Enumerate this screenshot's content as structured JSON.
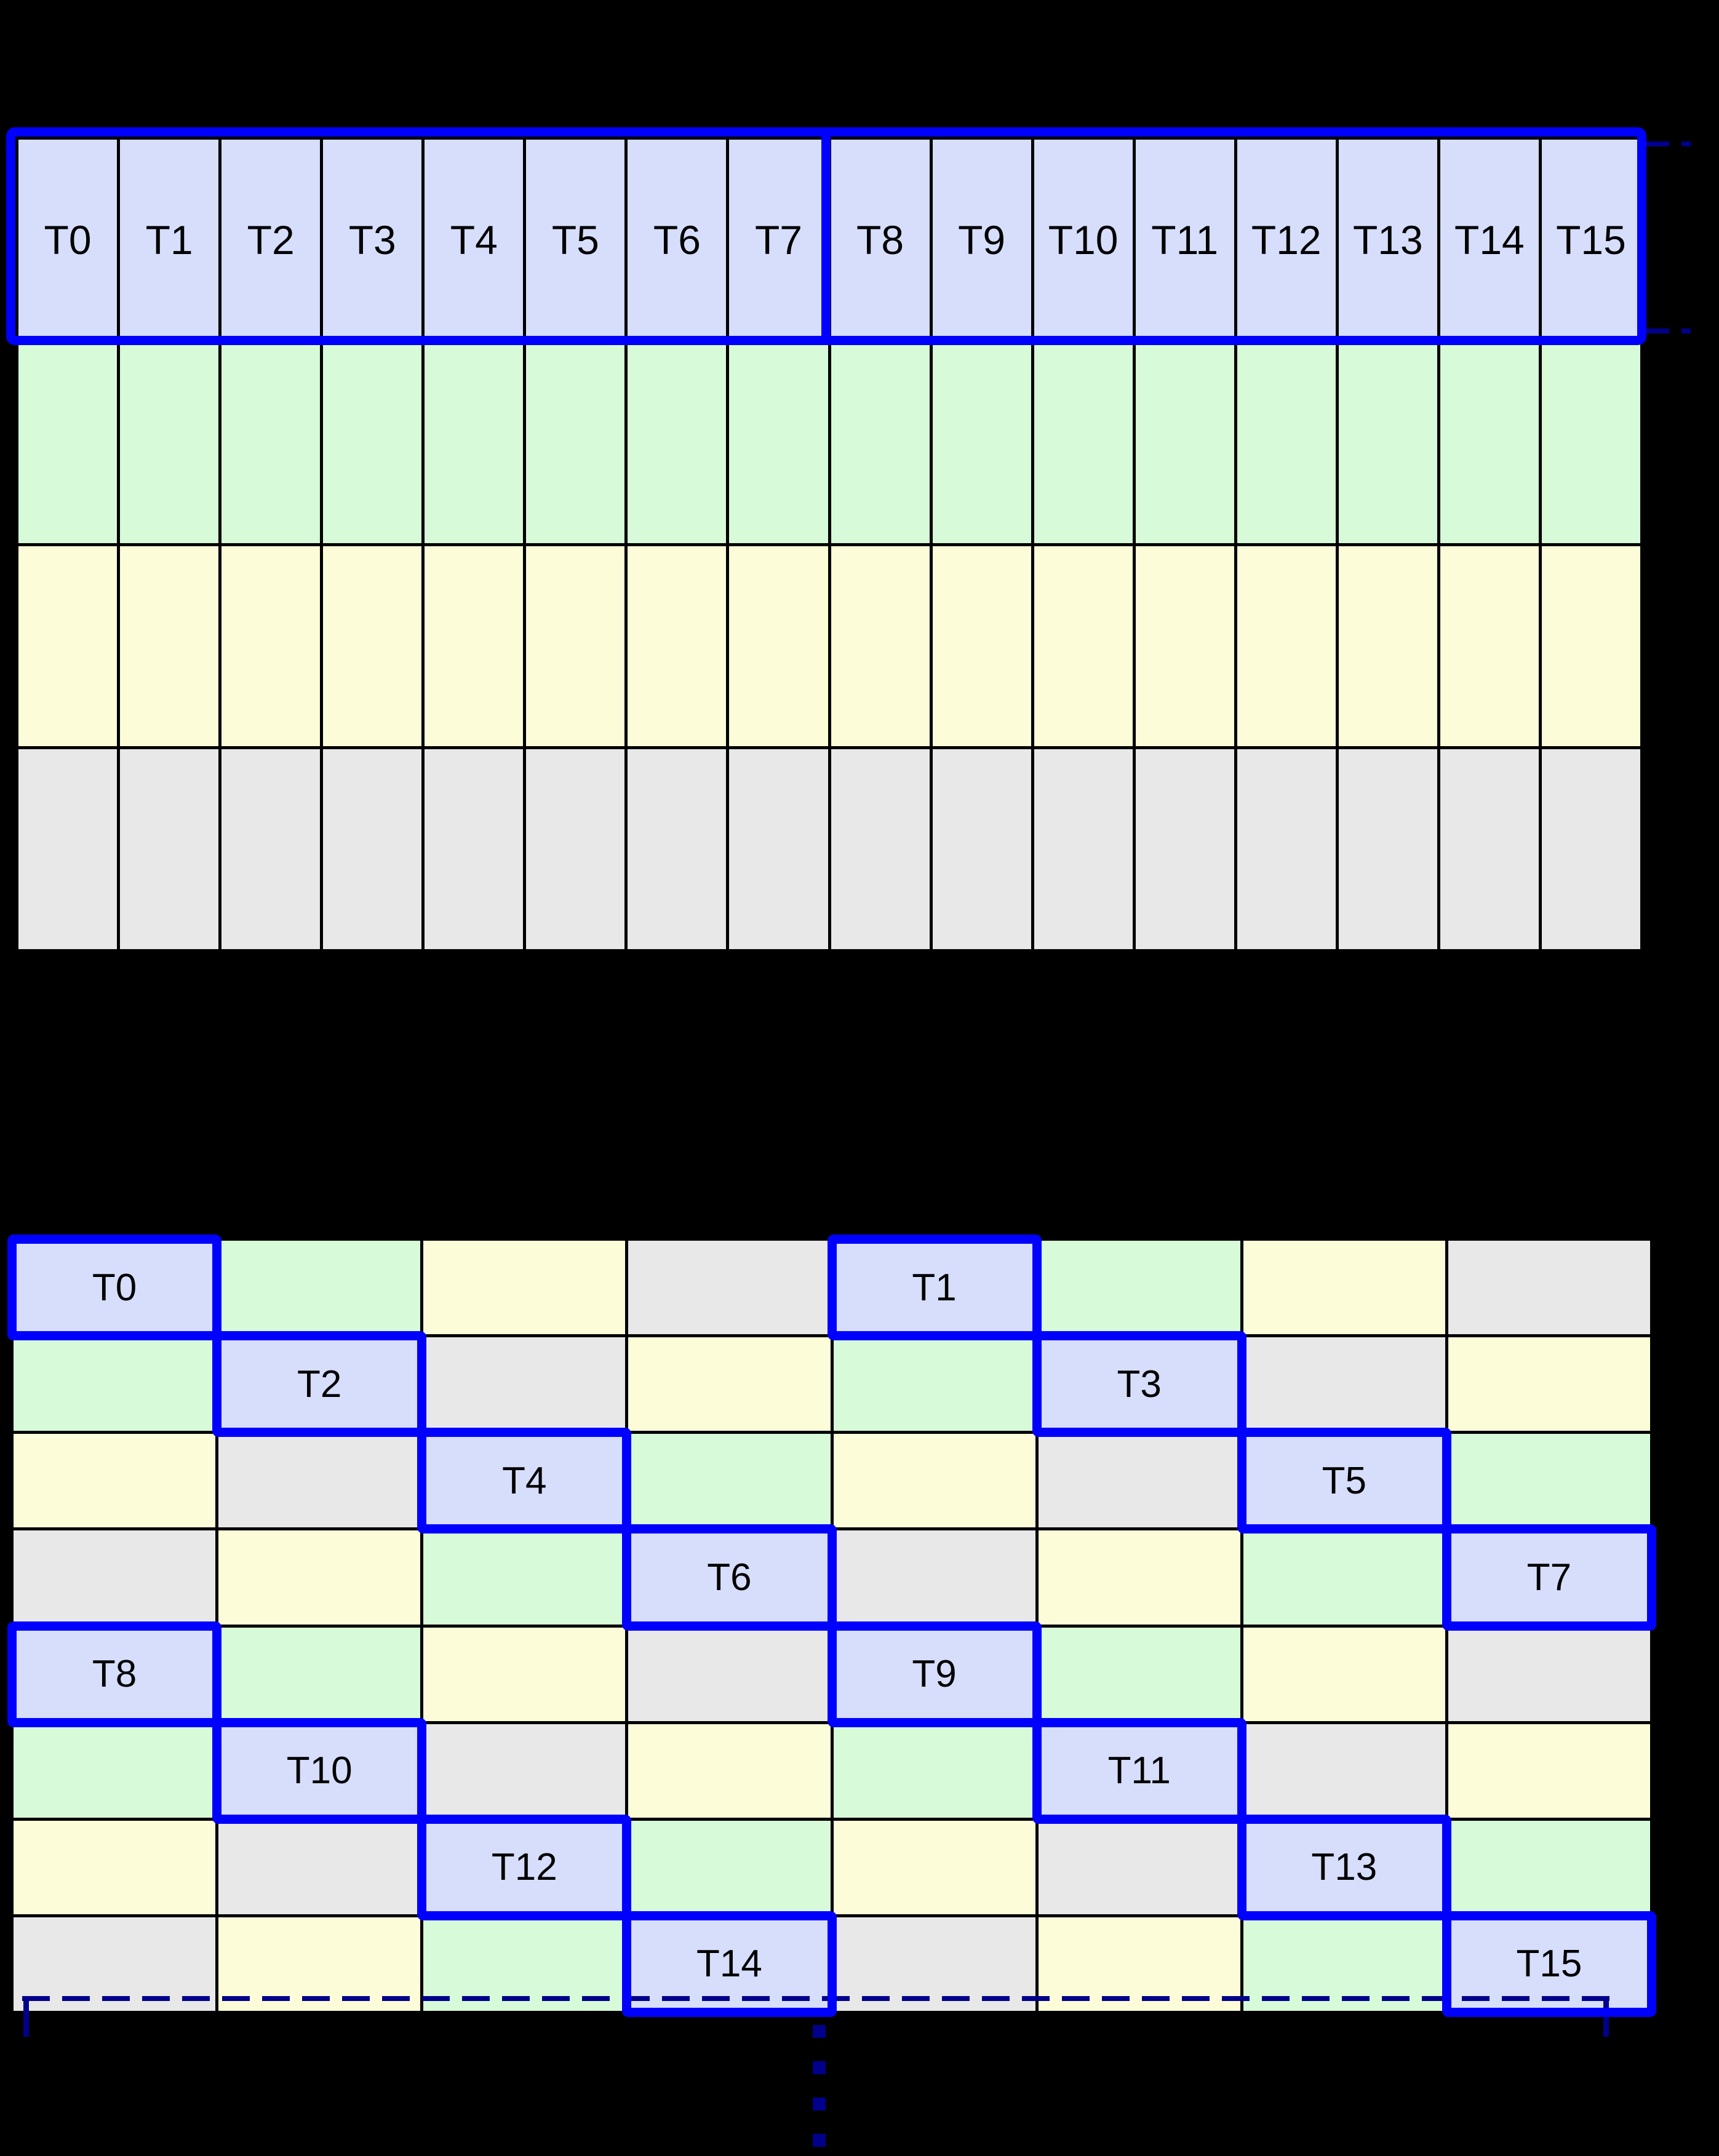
{
  "diagram": "thread-tile-swizzle",
  "palette": {
    "background": "#000000",
    "grid_line": "#000000",
    "thread_blue": "#d6defb",
    "green": "#d7fad8",
    "yellow": "#fdfcd8",
    "gray": "#e8e8e8",
    "highlight_blue": "#0000ff",
    "bracket_navy": "#00008b",
    "label_color": "#000000"
  },
  "top_grid": {
    "columns": 16,
    "rows": 4,
    "thread_labels": [
      "T0",
      "T1",
      "T2",
      "T3",
      "T4",
      "T5",
      "T6",
      "T7",
      "T8",
      "T9",
      "T10",
      "T11",
      "T12",
      "T13",
      "T14",
      "T15"
    ],
    "row_colors": [
      "thread_blue",
      "green",
      "yellow",
      "gray"
    ],
    "warp_groups": [
      {
        "threads": [
          "T0",
          "T1",
          "T2",
          "T3",
          "T4",
          "T5",
          "T6",
          "T7"
        ]
      },
      {
        "threads": [
          "T8",
          "T9",
          "T10",
          "T11",
          "T12",
          "T13",
          "T14",
          "T15"
        ]
      }
    ]
  },
  "bottom_grid": {
    "columns": 8,
    "rows": 8,
    "legend": {
      "B": "thread_blue",
      "G": "green",
      "Y": "yellow",
      "X": "gray"
    },
    "cells": [
      [
        "B:T0",
        "G",
        "Y",
        "X",
        "B:T1",
        "G",
        "Y",
        "X"
      ],
      [
        "G",
        "B:T2",
        "X",
        "Y",
        "G",
        "B:T3",
        "X",
        "Y"
      ],
      [
        "Y",
        "X",
        "B:T4",
        "G",
        "Y",
        "X",
        "B:T5",
        "G"
      ],
      [
        "X",
        "Y",
        "G",
        "B:T6",
        "X",
        "Y",
        "G",
        "B:T7"
      ],
      [
        "B:T8",
        "G",
        "Y",
        "X",
        "B:T9",
        "G",
        "Y",
        "X"
      ],
      [
        "G",
        "B:T10",
        "X",
        "Y",
        "G",
        "B:T11",
        "X",
        "Y"
      ],
      [
        "Y",
        "X",
        "B:T12",
        "G",
        "Y",
        "X",
        "B:T13",
        "G"
      ],
      [
        "X",
        "Y",
        "G",
        "B:T14",
        "X",
        "Y",
        "G",
        "B:T15"
      ]
    ]
  },
  "annotations": {
    "warp_row_bracket": "dashed navy bracket right of thread row",
    "tile_width_bracket": "dashed navy bracket under bottom grid",
    "continuation_dots": "vertical dashed ellipsis below bottom grid"
  }
}
